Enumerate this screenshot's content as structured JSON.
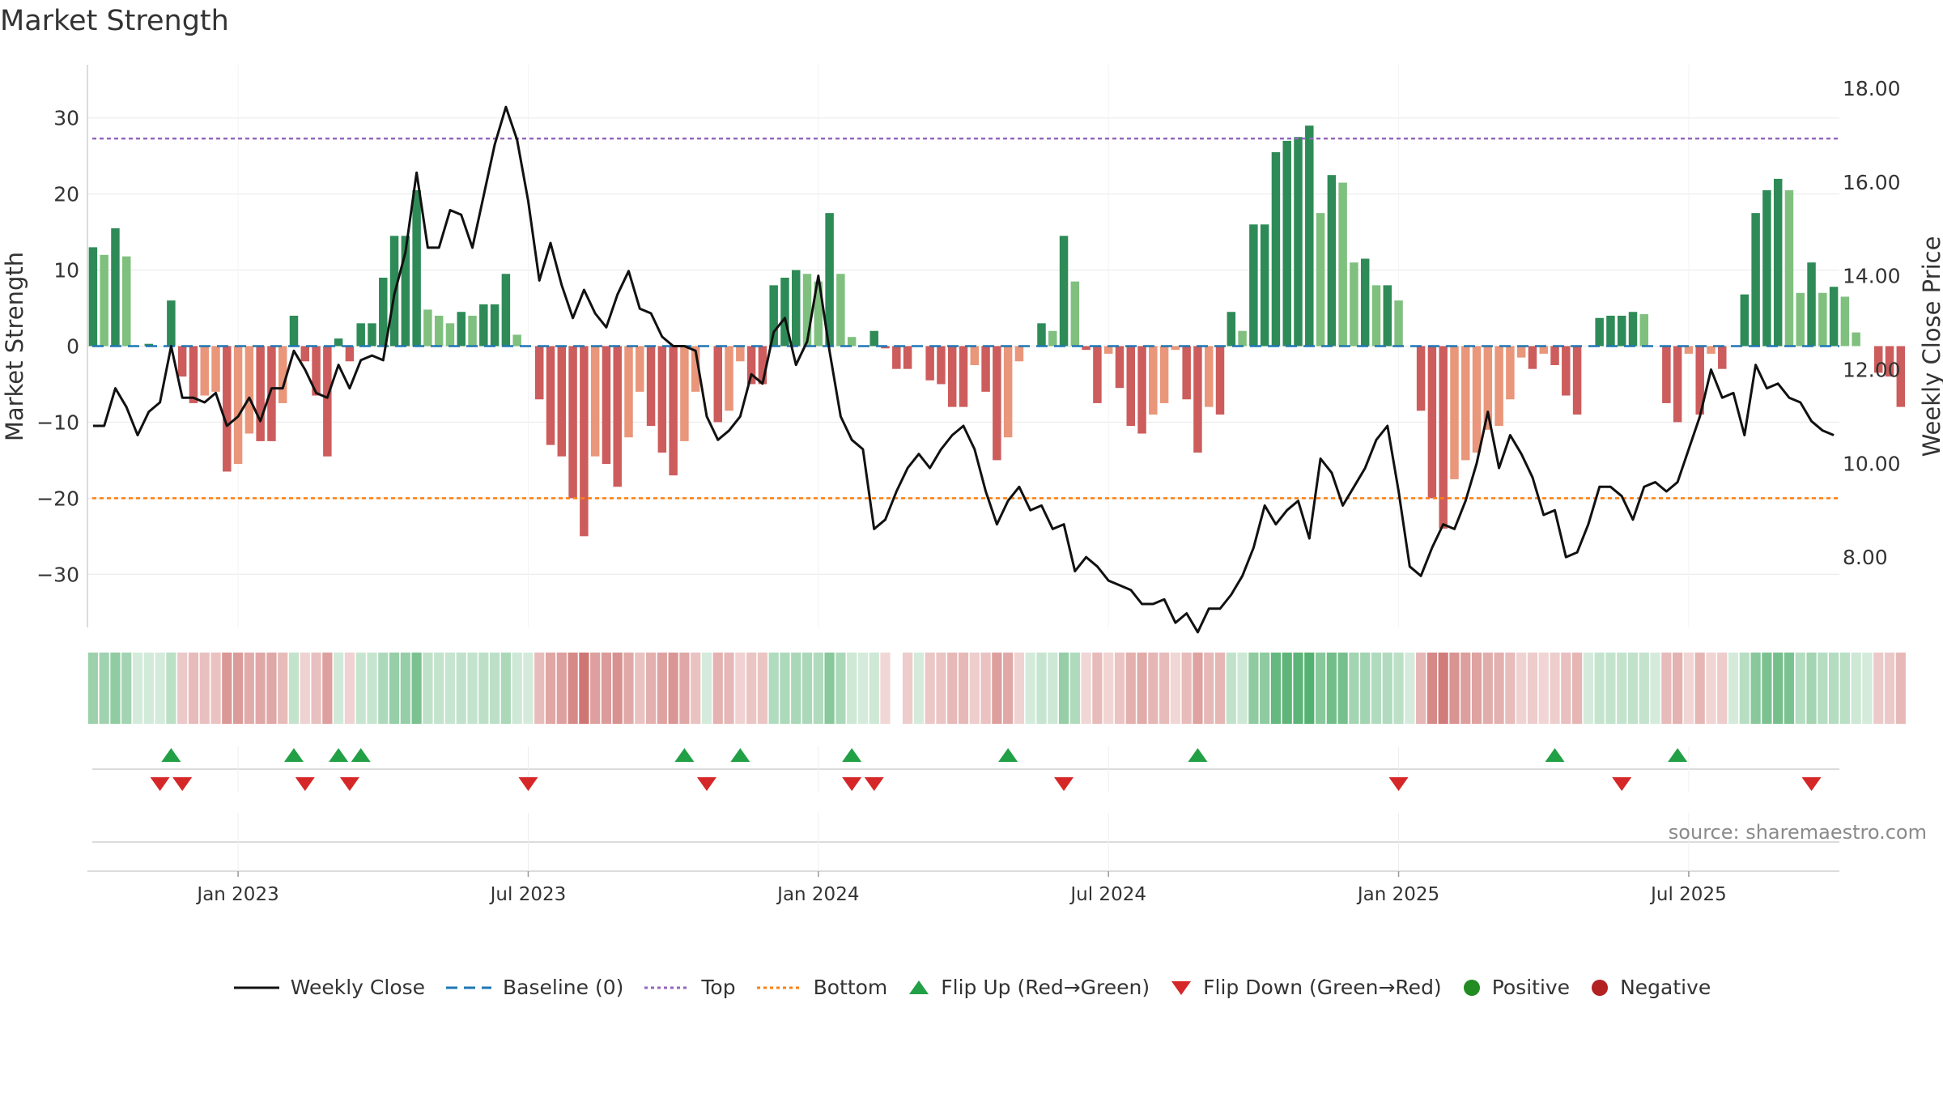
{
  "chart_data": {
    "type": "bar+line",
    "title": "Market Strength",
    "ylabel_left": "Market Strength",
    "ylabel_right": "Weekly Close Price",
    "ylim_left": [
      -37,
      37
    ],
    "ylim_right": [
      6.5,
      18.5
    ],
    "left_ticks": [
      -30,
      -20,
      -10,
      0,
      10,
      20,
      30
    ],
    "left_tick_labels": [
      "−30",
      "−20",
      "−10",
      "0",
      "10",
      "20",
      "30"
    ],
    "right_ticks": [
      8,
      10,
      12,
      14,
      16,
      18
    ],
    "right_tick_labels": [
      "8.00",
      "10.00",
      "12.00",
      "14.00",
      "16.00",
      "18.00"
    ],
    "x_tick_labels": [
      "Jan 2023",
      "Jul 2023",
      "Jan 2024",
      "Jul 2024",
      "Jan 2025",
      "Jul 2025"
    ],
    "x_tick_weeks": [
      13,
      39,
      65,
      91,
      117,
      143
    ],
    "n_weeks": 157,
    "start_week_label": "Oct 2022",
    "top_line": 27.3,
    "bottom_line": -20,
    "baseline": 0,
    "strength": [
      13,
      12,
      15.5,
      11.8,
      0,
      0.3,
      0,
      6,
      -4,
      -7.5,
      -6.5,
      -6,
      -16.5,
      -15.5,
      -11.5,
      -12.5,
      -12.5,
      -7.5,
      4,
      -2,
      -6.5,
      -14.5,
      1,
      -2,
      3,
      3,
      9,
      14.5,
      14.5,
      20.5,
      4.8,
      4,
      3,
      4.5,
      4,
      5.5,
      5.5,
      9.5,
      1.5,
      0,
      -7,
      -13,
      -14.5,
      -20,
      -25,
      -14.5,
      -15.5,
      -18.5,
      -12,
      -6,
      -10.5,
      -14,
      -17,
      -12.5,
      -6,
      0,
      -10,
      -8.5,
      -2,
      -5,
      -5,
      8,
      9,
      10,
      9.5,
      8.5,
      17.5,
      9.5,
      1.2,
      0,
      2,
      -0.3,
      -3,
      -3,
      0,
      -4.5,
      -5,
      -8,
      -8,
      -2.5,
      -6,
      -15,
      -12,
      -2,
      0,
      3,
      2,
      14.5,
      8.5,
      -0.5,
      -7.5,
      -1,
      -5.5,
      -10.5,
      -11.5,
      -9,
      -7.5,
      -0.5,
      -7,
      -14,
      -8,
      -9,
      4.5,
      2,
      16,
      16,
      25.5,
      27,
      27.5,
      29,
      17.5,
      22.5,
      21.5,
      11,
      11.5,
      8,
      8,
      6,
      0,
      -8.5,
      -20,
      -24,
      -17.5,
      -15,
      -14,
      -11,
      -10.5,
      -7,
      -1.5,
      -3,
      -1,
      -2.5,
      -6.5,
      -9,
      0,
      3.7,
      4,
      4,
      4.5,
      4.2,
      0,
      -7.5,
      -10,
      -1,
      -9,
      -1,
      -3,
      0,
      6.8,
      17.5,
      20.5,
      22,
      20.5,
      7,
      11,
      7,
      7.8,
      6.5,
      1.8,
      0,
      -3.5,
      -4,
      -8
    ],
    "weekly_close": [
      10.8,
      10.8,
      11.6,
      11.2,
      10.6,
      11.1,
      11.3,
      12.5,
      11.4,
      11.4,
      11.3,
      11.5,
      10.8,
      11.0,
      11.4,
      10.9,
      11.6,
      11.6,
      12.4,
      12.0,
      11.5,
      11.4,
      12.1,
      11.6,
      12.2,
      12.3,
      12.2,
      13.6,
      14.5,
      16.2,
      14.6,
      14.6,
      15.4,
      15.3,
      14.6,
      15.7,
      16.8,
      17.6,
      16.9,
      15.6,
      13.9,
      14.7,
      13.8,
      13.1,
      13.7,
      13.2,
      12.9,
      13.6,
      14.1,
      13.3,
      13.2,
      12.7,
      12.5,
      12.5,
      12.4,
      11.0,
      10.5,
      10.7,
      11.0,
      11.9,
      11.7,
      12.8,
      13.1,
      12.1,
      12.6,
      14.0,
      12.4,
      11.0,
      10.5,
      10.3,
      8.6,
      8.8,
      9.4,
      9.9,
      10.2,
      9.9,
      10.3,
      10.6,
      10.8,
      10.3,
      9.4,
      8.7,
      9.2,
      9.5,
      9.0,
      9.1,
      8.6,
      8.7,
      7.7,
      8.0,
      7.8,
      7.5,
      7.4,
      7.3,
      7.0,
      7.0,
      7.1,
      6.6,
      6.8,
      6.4,
      6.9,
      6.9,
      7.2,
      7.6,
      8.2,
      9.1,
      8.7,
      9.0,
      9.2,
      8.4,
      10.1,
      9.8,
      9.1,
      9.5,
      9.9,
      10.5,
      10.8,
      9.4,
      7.8,
      7.6,
      8.2,
      8.7,
      8.6,
      9.2,
      10.0,
      11.1,
      9.9,
      10.6,
      10.2,
      9.7,
      8.9,
      9.0,
      8.0,
      8.1,
      8.7,
      9.5,
      9.5,
      9.3,
      8.8,
      9.5,
      9.6,
      9.4,
      9.6,
      10.3,
      11.0,
      12.0,
      11.4,
      11.5,
      10.6,
      12.1,
      11.6,
      11.7,
      11.4,
      11.3,
      10.9,
      10.7,
      10.6
    ],
    "flip_up_weeks": [
      7,
      18,
      22,
      24,
      53,
      58,
      68,
      82,
      99,
      131,
      142
    ],
    "flip_down_weeks": [
      6,
      8,
      19,
      23,
      39,
      55,
      68,
      70,
      87,
      117,
      137,
      154
    ],
    "regime_strip": {
      "hidden_weeks": [
        72
      ]
    },
    "legend": [
      "Weekly Close",
      "Baseline (0)",
      "Top",
      "Bottom",
      "Flip Up (Red→Green)",
      "Flip Down (Green→Red)",
      "Positive",
      "Negative"
    ],
    "colors": {
      "pos_strong": "#2e8b57",
      "pos_light": "#7fc07f",
      "neg_strong": "#cd5c5c",
      "neg_light": "#e9967a",
      "line": "#111111",
      "baseline": "#1f77b4",
      "top": "#9467bd",
      "bottom": "#ff7f0e",
      "flip_up": "#22a045",
      "flip_down": "#d62728",
      "positive_dot": "#228b22",
      "negative_dot": "#b22222",
      "grid": "#e8e8e8"
    }
  },
  "source": "source: sharemaestro.com"
}
